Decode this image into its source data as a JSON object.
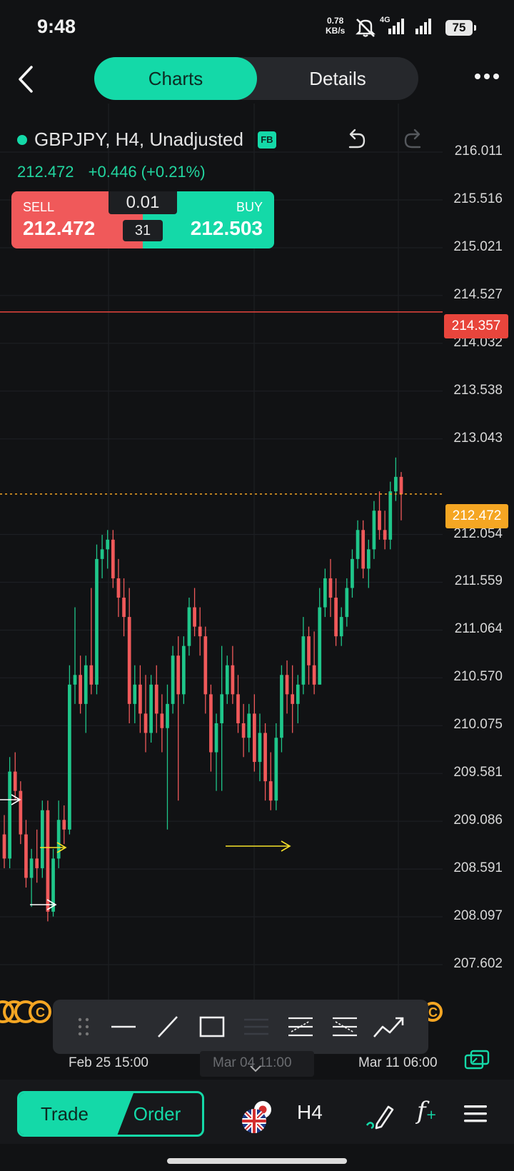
{
  "status_bar": {
    "time": "9:48",
    "net_speed_value": "0.78",
    "net_speed_unit": "KB/s",
    "network": "4G",
    "battery": "75"
  },
  "header": {
    "tabs": [
      {
        "label": "Charts",
        "active": true
      },
      {
        "label": "Details",
        "active": false
      }
    ]
  },
  "instrument": {
    "title": "GBPJPY, H4, Unadjusted",
    "badge": "FB",
    "last_price": "212.472",
    "change": "+0.446 (+0.21%)"
  },
  "trade_panel": {
    "sell_label": "SELL",
    "sell_price": "212.472",
    "buy_label": "BUY",
    "buy_price": "212.503",
    "lot_size": "0.01",
    "spread": "31"
  },
  "price_axis": [
    "216.011",
    "215.516",
    "215.021",
    "214.527",
    "214.032",
    "213.538",
    "213.043",
    "212.054",
    "211.559",
    "211.064",
    "210.570",
    "210.075",
    "209.581",
    "209.086",
    "208.591",
    "208.097",
    "207.602"
  ],
  "line_tag": "214.357",
  "current_price_tag": "212.472",
  "dates": [
    "Feb 25 15:00",
    "Mar 04 11:00",
    "Mar 11 06:00"
  ],
  "bottom_bar": {
    "trade": "Trade",
    "order": "Order",
    "timeframe": "H4"
  },
  "colors": {
    "accent": "#14d9a8",
    "bull": "#1fc68a",
    "bear": "#f0595a",
    "alert_line": "#e8453c",
    "current_price": "#f5a623"
  },
  "chart_data": {
    "type": "candlestick",
    "ylim": [
      207.4,
      216.3
    ],
    "price_line": 214.357,
    "current_price": 212.472,
    "candles": [
      {
        "o": 208.95,
        "h": 209.15,
        "l": 208.6,
        "c": 208.7
      },
      {
        "o": 208.7,
        "h": 209.75,
        "l": 208.6,
        "c": 209.6
      },
      {
        "o": 209.6,
        "h": 209.8,
        "l": 209.3,
        "c": 209.4
      },
      {
        "o": 209.4,
        "h": 209.5,
        "l": 208.85,
        "c": 208.95
      },
      {
        "o": 208.95,
        "h": 209.1,
        "l": 208.4,
        "c": 208.5
      },
      {
        "o": 208.5,
        "h": 208.8,
        "l": 208.2,
        "c": 208.7
      },
      {
        "o": 208.7,
        "h": 209.0,
        "l": 208.45,
        "c": 208.6
      },
      {
        "o": 208.6,
        "h": 209.3,
        "l": 208.5,
        "c": 209.2
      },
      {
        "o": 209.2,
        "h": 209.3,
        "l": 208.05,
        "c": 208.15
      },
      {
        "o": 208.15,
        "h": 208.8,
        "l": 208.1,
        "c": 208.7
      },
      {
        "o": 208.7,
        "h": 209.3,
        "l": 208.6,
        "c": 209.1
      },
      {
        "o": 209.1,
        "h": 209.25,
        "l": 208.85,
        "c": 209.0
      },
      {
        "o": 209.0,
        "h": 210.7,
        "l": 208.95,
        "c": 210.5
      },
      {
        "o": 210.5,
        "h": 211.3,
        "l": 210.3,
        "c": 210.6
      },
      {
        "o": 210.6,
        "h": 210.8,
        "l": 210.2,
        "c": 210.3
      },
      {
        "o": 210.3,
        "h": 210.8,
        "l": 210.0,
        "c": 210.7
      },
      {
        "o": 210.7,
        "h": 211.5,
        "l": 210.4,
        "c": 210.5
      },
      {
        "o": 210.5,
        "h": 211.95,
        "l": 210.4,
        "c": 211.8
      },
      {
        "o": 211.8,
        "h": 212.05,
        "l": 211.6,
        "c": 211.9
      },
      {
        "o": 211.9,
        "h": 212.1,
        "l": 211.7,
        "c": 212.0
      },
      {
        "o": 212.0,
        "h": 212.1,
        "l": 211.5,
        "c": 211.6
      },
      {
        "o": 211.6,
        "h": 211.8,
        "l": 211.2,
        "c": 211.4
      },
      {
        "o": 211.4,
        "h": 211.6,
        "l": 211.0,
        "c": 211.2
      },
      {
        "o": 211.2,
        "h": 211.5,
        "l": 210.1,
        "c": 210.3
      },
      {
        "o": 210.3,
        "h": 210.7,
        "l": 210.1,
        "c": 210.5
      },
      {
        "o": 210.5,
        "h": 210.7,
        "l": 210.0,
        "c": 210.2
      },
      {
        "o": 210.2,
        "h": 210.6,
        "l": 209.8,
        "c": 210.0
      },
      {
        "o": 210.0,
        "h": 210.6,
        "l": 209.9,
        "c": 210.5
      },
      {
        "o": 210.5,
        "h": 210.7,
        "l": 210.0,
        "c": 210.2
      },
      {
        "o": 210.2,
        "h": 210.4,
        "l": 209.8,
        "c": 210.05
      },
      {
        "o": 210.05,
        "h": 210.5,
        "l": 209.0,
        "c": 210.3
      },
      {
        "o": 210.3,
        "h": 210.9,
        "l": 210.2,
        "c": 210.8
      },
      {
        "o": 210.8,
        "h": 211.0,
        "l": 209.3,
        "c": 210.4
      },
      {
        "o": 210.4,
        "h": 211.0,
        "l": 210.3,
        "c": 210.9
      },
      {
        "o": 210.9,
        "h": 211.4,
        "l": 210.8,
        "c": 211.3
      },
      {
        "o": 211.3,
        "h": 211.5,
        "l": 211.0,
        "c": 211.1
      },
      {
        "o": 211.1,
        "h": 211.3,
        "l": 210.8,
        "c": 211.0
      },
      {
        "o": 211.0,
        "h": 211.1,
        "l": 210.2,
        "c": 210.4
      },
      {
        "o": 210.4,
        "h": 210.5,
        "l": 209.6,
        "c": 209.8
      },
      {
        "o": 209.8,
        "h": 210.2,
        "l": 209.4,
        "c": 210.1
      },
      {
        "o": 210.1,
        "h": 210.9,
        "l": 209.4,
        "c": 210.4
      },
      {
        "o": 210.4,
        "h": 210.8,
        "l": 210.3,
        "c": 210.7
      },
      {
        "o": 210.7,
        "h": 210.9,
        "l": 210.3,
        "c": 210.4
      },
      {
        "o": 210.4,
        "h": 210.6,
        "l": 210.0,
        "c": 210.1
      },
      {
        "o": 210.1,
        "h": 210.3,
        "l": 209.75,
        "c": 209.95
      },
      {
        "o": 209.95,
        "h": 210.3,
        "l": 209.8,
        "c": 210.2
      },
      {
        "o": 210.2,
        "h": 210.4,
        "l": 209.6,
        "c": 209.7
      },
      {
        "o": 209.7,
        "h": 210.2,
        "l": 209.5,
        "c": 210.0
      },
      {
        "o": 210.0,
        "h": 210.1,
        "l": 209.3,
        "c": 209.5
      },
      {
        "o": 209.5,
        "h": 209.8,
        "l": 209.2,
        "c": 209.3
      },
      {
        "o": 209.3,
        "h": 210.1,
        "l": 209.2,
        "c": 209.95
      },
      {
        "o": 209.95,
        "h": 210.7,
        "l": 209.8,
        "c": 210.6
      },
      {
        "o": 210.6,
        "h": 210.75,
        "l": 210.2,
        "c": 210.4
      },
      {
        "o": 210.4,
        "h": 210.7,
        "l": 210.0,
        "c": 210.3
      },
      {
        "o": 210.3,
        "h": 210.6,
        "l": 210.1,
        "c": 210.5
      },
      {
        "o": 210.5,
        "h": 211.2,
        "l": 210.4,
        "c": 211.0
      },
      {
        "o": 211.0,
        "h": 211.1,
        "l": 210.5,
        "c": 210.7
      },
      {
        "o": 210.7,
        "h": 211.05,
        "l": 210.4,
        "c": 210.5
      },
      {
        "o": 210.5,
        "h": 211.5,
        "l": 210.5,
        "c": 211.3
      },
      {
        "o": 211.3,
        "h": 211.7,
        "l": 211.2,
        "c": 211.6
      },
      {
        "o": 211.6,
        "h": 211.8,
        "l": 211.2,
        "c": 211.4
      },
      {
        "o": 211.4,
        "h": 211.6,
        "l": 210.9,
        "c": 211.0
      },
      {
        "o": 211.0,
        "h": 211.3,
        "l": 210.9,
        "c": 211.2
      },
      {
        "o": 211.2,
        "h": 211.6,
        "l": 211.1,
        "c": 211.5
      },
      {
        "o": 211.5,
        "h": 211.9,
        "l": 211.4,
        "c": 211.8
      },
      {
        "o": 211.8,
        "h": 212.2,
        "l": 211.7,
        "c": 212.1
      },
      {
        "o": 212.1,
        "h": 212.2,
        "l": 211.6,
        "c": 211.7
      },
      {
        "o": 211.7,
        "h": 212.0,
        "l": 211.5,
        "c": 211.9
      },
      {
        "o": 211.9,
        "h": 212.4,
        "l": 211.8,
        "c": 212.3
      },
      {
        "o": 212.3,
        "h": 212.5,
        "l": 212.0,
        "c": 212.1
      },
      {
        "o": 212.1,
        "h": 212.3,
        "l": 211.9,
        "c": 212.0
      },
      {
        "o": 212.0,
        "h": 212.6,
        "l": 211.9,
        "c": 212.5
      },
      {
        "o": 212.5,
        "h": 212.85,
        "l": 212.4,
        "c": 212.65
      },
      {
        "o": 212.65,
        "h": 212.7,
        "l": 212.2,
        "c": 212.47
      }
    ]
  }
}
